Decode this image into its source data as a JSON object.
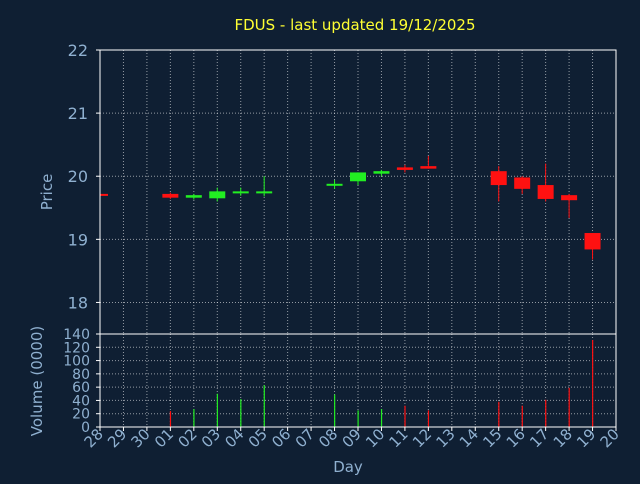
{
  "title": "FDUS - last updated 19/12/2025",
  "colors": {
    "background": "#0f1f33",
    "plot_border": "#ffffff",
    "grid": "#ffffff",
    "title": "#ffff33",
    "axis_text": "#8fb0d0",
    "up": "#22ee22",
    "down": "#ff1111"
  },
  "chart_data": [
    {
      "type": "candlestick",
      "ylabel": "Price",
      "ylim": [
        17.5,
        22
      ],
      "yticks": [
        18,
        19,
        20,
        21,
        22
      ],
      "grid": true,
      "candles": [
        {
          "day": "28",
          "open": 19.72,
          "high": 19.73,
          "low": 19.71,
          "close": 19.71,
          "dir": "down"
        },
        {
          "day": "01",
          "open": 19.72,
          "high": 19.74,
          "low": 19.64,
          "close": 19.66,
          "dir": "down"
        },
        {
          "day": "02",
          "open": 19.66,
          "high": 19.72,
          "low": 19.63,
          "close": 19.7,
          "dir": "up"
        },
        {
          "day": "03",
          "open": 19.65,
          "high": 19.82,
          "low": 19.6,
          "close": 19.76,
          "dir": "up"
        },
        {
          "day": "04",
          "open": 19.73,
          "high": 19.82,
          "low": 19.69,
          "close": 19.76,
          "dir": "up"
        },
        {
          "day": "05",
          "open": 19.73,
          "high": 20.0,
          "low": 19.68,
          "close": 19.76,
          "dir": "up"
        },
        {
          "day": "08",
          "open": 19.86,
          "high": 19.94,
          "low": 19.8,
          "close": 19.88,
          "dir": "up"
        },
        {
          "day": "09",
          "open": 19.92,
          "high": 20.06,
          "low": 19.86,
          "close": 20.06,
          "dir": "up"
        },
        {
          "day": "10",
          "open": 20.04,
          "high": 20.1,
          "low": 20.0,
          "close": 20.08,
          "dir": "up"
        },
        {
          "day": "11",
          "open": 20.14,
          "high": 20.18,
          "low": 20.06,
          "close": 20.1,
          "dir": "down"
        },
        {
          "day": "12",
          "open": 20.16,
          "high": 20.32,
          "low": 20.12,
          "close": 20.12,
          "dir": "down"
        },
        {
          "day": "15",
          "open": 20.08,
          "high": 20.16,
          "low": 19.6,
          "close": 19.86,
          "dir": "down"
        },
        {
          "day": "16",
          "open": 19.98,
          "high": 20.0,
          "low": 19.72,
          "close": 19.8,
          "dir": "down"
        },
        {
          "day": "17",
          "open": 19.86,
          "high": 20.2,
          "low": 19.6,
          "close": 19.64,
          "dir": "down"
        },
        {
          "day": "18",
          "open": 19.7,
          "high": 19.72,
          "low": 19.34,
          "close": 19.62,
          "dir": "down"
        },
        {
          "day": "19",
          "open": 19.1,
          "high": 19.1,
          "low": 18.68,
          "close": 18.84,
          "dir": "down"
        }
      ]
    },
    {
      "type": "bar",
      "xlabel": "Day",
      "ylabel": "Volume (0000)",
      "ylim": [
        0,
        140
      ],
      "yticks": [
        0,
        20,
        40,
        60,
        80,
        100,
        120,
        140
      ],
      "grid": true,
      "categories": [
        "28",
        "29",
        "30",
        "01",
        "02",
        "03",
        "04",
        "05",
        "06",
        "07",
        "08",
        "09",
        "10",
        "11",
        "12",
        "13",
        "14",
        "15",
        "16",
        "17",
        "18",
        "19",
        "20"
      ],
      "volumes": [
        {
          "day": "01",
          "value": 24,
          "dir": "down"
        },
        {
          "day": "02",
          "value": 27,
          "dir": "up"
        },
        {
          "day": "03",
          "value": 50,
          "dir": "up"
        },
        {
          "day": "04",
          "value": 42,
          "dir": "up"
        },
        {
          "day": "05",
          "value": 63,
          "dir": "up"
        },
        {
          "day": "08",
          "value": 49,
          "dir": "up"
        },
        {
          "day": "09",
          "value": 25,
          "dir": "up"
        },
        {
          "day": "10",
          "value": 27,
          "dir": "up"
        },
        {
          "day": "11",
          "value": 32,
          "dir": "down"
        },
        {
          "day": "12",
          "value": 25,
          "dir": "down"
        },
        {
          "day": "15",
          "value": 38,
          "dir": "down"
        },
        {
          "day": "16",
          "value": 32,
          "dir": "down"
        },
        {
          "day": "17",
          "value": 41,
          "dir": "down"
        },
        {
          "day": "18",
          "value": 59,
          "dir": "down"
        },
        {
          "day": "19",
          "value": 131,
          "dir": "down"
        }
      ]
    }
  ]
}
